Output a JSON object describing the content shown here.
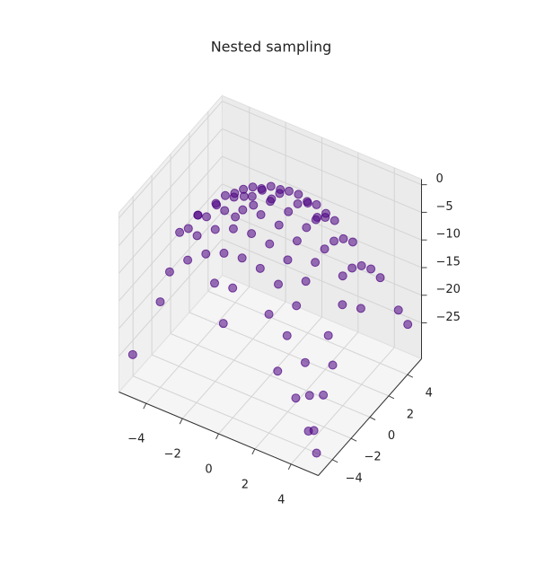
{
  "chart_data": {
    "type": "scatter3d",
    "title": "Nested sampling",
    "color": "#4b0082",
    "xlim": [
      -5.5,
      5.5
    ],
    "ylim": [
      -5.5,
      5.5
    ],
    "zlim": [
      -31.5,
      1
    ],
    "xticks": [
      {
        "value": -4,
        "label": "−4"
      },
      {
        "value": -2,
        "label": "−2"
      },
      0,
      2,
      4
    ],
    "yticks": [
      {
        "value": -4,
        "label": "−4"
      },
      {
        "value": -2,
        "label": "−2"
      },
      0,
      2,
      4
    ],
    "zticks": [
      {
        "value": -25,
        "label": "−25"
      },
      {
        "value": -20,
        "label": "−20"
      },
      {
        "value": -15,
        "label": "−15"
      },
      {
        "value": -10,
        "label": "−10"
      },
      {
        "value": -5,
        "label": "−5"
      },
      0
    ],
    "x": [
      0,
      1,
      0,
      -1,
      0,
      1,
      -1,
      1,
      -1,
      2,
      0,
      -2,
      0,
      2,
      1,
      -2,
      -1,
      2,
      1,
      -2,
      -1,
      2,
      -2,
      2,
      -2,
      3,
      0,
      -3,
      0,
      3,
      -3,
      3,
      -3,
      1,
      -1,
      1,
      -1,
      3,
      -3,
      3,
      -3,
      2,
      -2,
      2,
      -2,
      4,
      -4,
      0,
      0,
      4,
      -4,
      1,
      -1,
      3,
      -3,
      3,
      -3,
      4,
      -4,
      2,
      -2,
      4.5,
      -4.5,
      4,
      -4,
      3,
      -3,
      4.5,
      5,
      -5,
      0,
      0,
      4,
      -4,
      4,
      -4,
      5,
      3,
      4.5,
      5,
      4,
      5,
      4.8,
      5.3,
      5,
      -5,
      5
    ],
    "y": [
      0,
      0,
      1,
      0,
      -1,
      1,
      1,
      -1,
      -1,
      0,
      2,
      0,
      -2,
      1,
      2,
      1,
      2,
      -1,
      -2,
      -1,
      -2,
      2,
      2,
      -2,
      -2,
      0,
      3,
      0,
      -3,
      1,
      1,
      -1,
      -1,
      3,
      3,
      -3,
      -3,
      2,
      2,
      -2,
      -2,
      3,
      3,
      -3,
      -3,
      0,
      0,
      4,
      -4,
      1,
      -1,
      4,
      -4,
      3,
      3,
      -3,
      -3,
      2,
      2,
      -4,
      4,
      -1,
      1,
      3,
      -3,
      -4,
      4,
      -2.5,
      0,
      0,
      -5,
      5,
      -4,
      4,
      4,
      -4,
      -3,
      -5,
      -4.5,
      -4,
      -5,
      -5,
      -5.2,
      -5.3,
      5,
      -5,
      4
    ],
    "z": [
      0,
      -0.5,
      -0.5,
      -0.5,
      -0.5,
      -1,
      -1,
      -1,
      -1,
      -2,
      -2,
      -2,
      -2,
      -2.5,
      -2.5,
      -2.5,
      -2.5,
      -2.5,
      -2.5,
      -2.5,
      -2.5,
      -4,
      -4,
      -4,
      -4,
      -4.5,
      -4.5,
      -4.5,
      -4.5,
      -5,
      -5,
      -5,
      -5,
      -5,
      -5,
      -5,
      -5,
      -6.5,
      -6.5,
      -6.5,
      -6.5,
      -6.5,
      -6.5,
      -6.5,
      -6.5,
      -8,
      -8,
      -8,
      -8,
      -8.5,
      -8.5,
      -8.5,
      -8.5,
      -9,
      -9,
      -9,
      -9,
      -10,
      -10,
      -10,
      -10,
      -10.6,
      -10.6,
      -12.5,
      -12.5,
      -12.5,
      -12.5,
      -13.3,
      -12.5,
      -12.5,
      -12.5,
      -12.5,
      -16,
      -16,
      -16,
      -16,
      -17,
      -17,
      -20.3,
      -20.5,
      -20.5,
      -25,
      -25,
      -28.1,
      -25,
      -25,
      -20.5
    ]
  }
}
